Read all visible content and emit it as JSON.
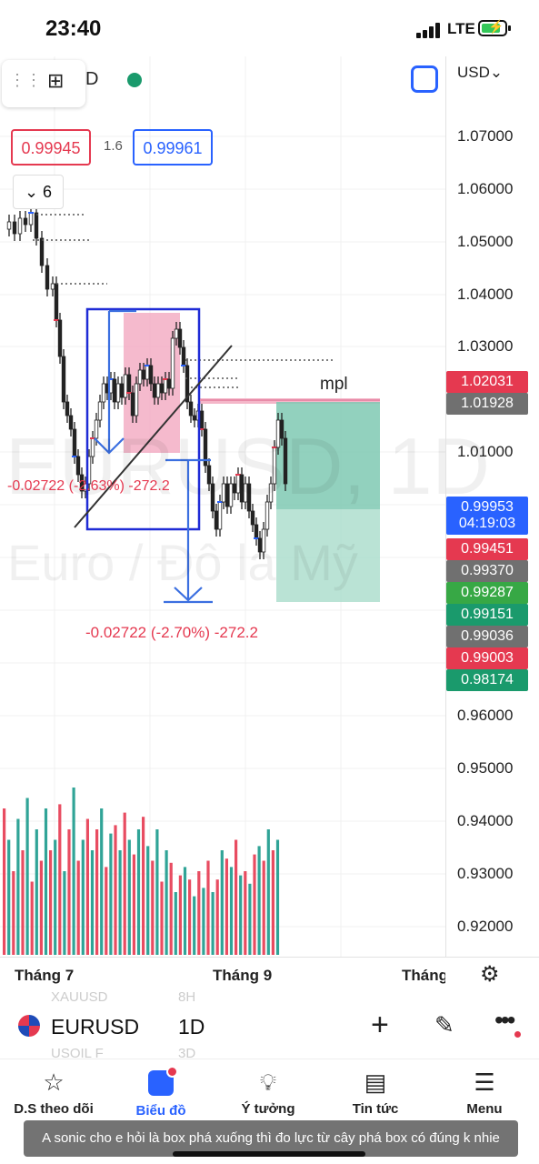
{
  "status_bar": {
    "time": "23:40",
    "network": "LTE"
  },
  "toolbar": {
    "interval_suffix": "D"
  },
  "quote": {
    "bid": "0.99945",
    "spread": "1.6",
    "ask": "0.99961"
  },
  "collapse_button": {
    "label": "6"
  },
  "watermark": {
    "symbol": "EURUSD, 1D",
    "name": "Euro / Đô la Mỹ"
  },
  "drawings": {
    "label_mpl": "mpl",
    "measure_small": "-0.02722 (-2.63%) -272.2",
    "measure_large": "-0.02722 (-2.70%) -272.2"
  },
  "price_axis": {
    "currency": "USD",
    "ticks": [
      "1.07000",
      "1.06000",
      "1.05000",
      "1.04000",
      "1.03000",
      "1.01000",
      "0.96000",
      "0.95000",
      "0.94000",
      "0.93000",
      "0.92000"
    ],
    "tags": [
      {
        "value": "1.02031",
        "color": "#e53950"
      },
      {
        "value": "1.01928",
        "color": "#707070"
      },
      {
        "value": "0.99953",
        "sub": "04:19:03",
        "color": "#2962ff"
      },
      {
        "value": "0.99451",
        "color": "#e53950"
      },
      {
        "value": "0.99370",
        "color": "#707070"
      },
      {
        "value": "0.99287",
        "color": "#37a845"
      },
      {
        "value": "0.99151",
        "color": "#1a9a6c"
      },
      {
        "value": "0.99036",
        "color": "#707070"
      },
      {
        "value": "0.99003",
        "color": "#e53950"
      },
      {
        "value": "0.98174",
        "color": "#1a9a6c"
      }
    ]
  },
  "time_axis": {
    "labels": [
      "Tháng 7",
      "Tháng 9",
      "Tháng"
    ]
  },
  "symbol_bar": {
    "symbol": "EURUSD",
    "interval": "1D",
    "ghost_top": "XAUUSD",
    "ghost_top_interval": "8H",
    "ghost_bottom": "USOIL F",
    "ghost_bottom_interval": "3D"
  },
  "nav": {
    "items": [
      {
        "label": "D.S theo dõi",
        "icon": "star-icon"
      },
      {
        "label": "Biểu đồ",
        "icon": "chart-icon"
      },
      {
        "label": "Ý tưởng",
        "icon": "lightbulb-icon"
      },
      {
        "label": "Tin tức",
        "icon": "news-icon"
      },
      {
        "label": "Menu",
        "icon": "menu-icon"
      }
    ]
  },
  "caption": "A sonic cho e hỏi là box phá xuống thì đo lực từ cây phá box có đúng k nhie",
  "colors": {
    "up": "#1a9a8c",
    "down": "#e53950",
    "accent": "#2962ff"
  }
}
